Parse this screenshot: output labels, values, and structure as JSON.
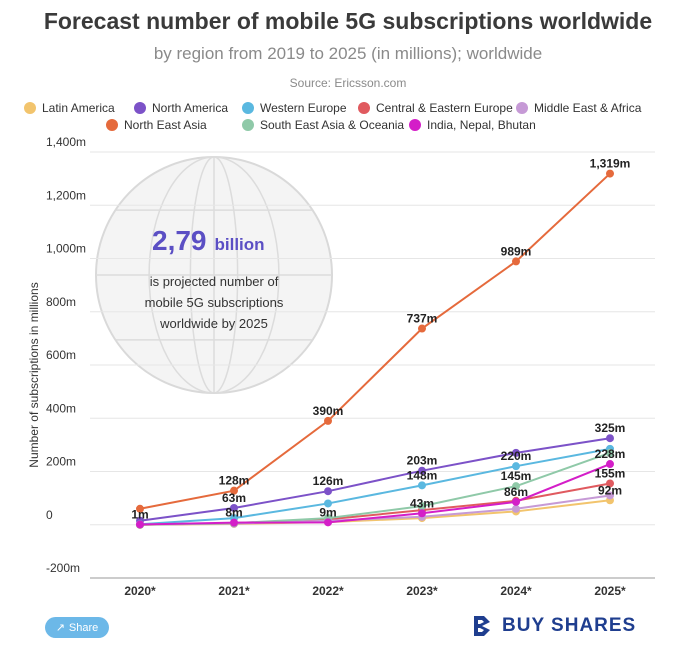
{
  "title": "Forecast number of mobile 5G subscriptions worldwide",
  "subtitle": "by region from 2019 to 2025 (in millions); worldwide",
  "source": "Source: Ericsson.com",
  "callout": {
    "value": "2,79",
    "unit": "billion",
    "lines": [
      "is projected number of",
      "mobile 5G subscriptions",
      "worldwide by 2025"
    ]
  },
  "share_label": "Share",
  "brand": "BUY SHARES",
  "chart_data": {
    "type": "line",
    "title": "Forecast number of mobile 5G subscriptions worldwide",
    "subtitle": "by region from 2019 to 2025 (in millions); worldwide",
    "ylabel": "Number of subscriptions in millions",
    "xlabel": "",
    "categories": [
      "2020*",
      "2021*",
      "2022*",
      "2023*",
      "2024*",
      "2025*"
    ],
    "ylim": [
      -200,
      1400
    ],
    "yticks": [
      -200,
      0,
      200,
      400,
      600,
      800,
      1000,
      1200,
      1400
    ],
    "ytick_labels": [
      "-200m",
      "0",
      "200m",
      "400m",
      "600m",
      "800m",
      "1,000m",
      "1,200m",
      "1,400m"
    ],
    "grid": true,
    "legend_position": "top",
    "series": [
      {
        "name": "Latin America",
        "color": "#f2c46d",
        "values": [
          0,
          3,
          10,
          25,
          50,
          92
        ]
      },
      {
        "name": "North America",
        "color": "#7c52c8",
        "values": [
          15,
          63,
          126,
          203,
          270,
          325
        ]
      },
      {
        "name": "Western Europe",
        "color": "#5ab8e0",
        "values": [
          2,
          25,
          80,
          148,
          220,
          285
        ]
      },
      {
        "name": "Central & Eastern Europe",
        "color": "#e05a5f",
        "values": [
          0,
          5,
          20,
          55,
          90,
          155
        ]
      },
      {
        "name": "Middle East & Africa",
        "color": "#c69ad6",
        "values": [
          1,
          4,
          15,
          30,
          60,
          110
        ]
      },
      {
        "name": "North East Asia",
        "color": "#e56a3c",
        "values": [
          60,
          128,
          390,
          737,
          989,
          1319
        ]
      },
      {
        "name": "South East Asia & Oceania",
        "color": "#8fc9a8",
        "values": [
          0,
          6,
          25,
          70,
          145,
          270
        ]
      },
      {
        "name": "India, Nepal, Bhutan",
        "color": "#d41ec8",
        "values": [
          1,
          8,
          9,
          43,
          86,
          228
        ]
      }
    ],
    "data_labels": [
      {
        "text": "1m",
        "x": "2020*",
        "y": 1
      },
      {
        "text": "128m",
        "x": "2021*",
        "y": 128
      },
      {
        "text": "63m",
        "x": "2021*",
        "y": 63
      },
      {
        "text": "8m",
        "x": "2021*",
        "y": 8
      },
      {
        "text": "390m",
        "x": "2022*",
        "y": 390
      },
      {
        "text": "126m",
        "x": "2022*",
        "y": 126
      },
      {
        "text": "9m",
        "x": "2022*",
        "y": 9
      },
      {
        "text": "737m",
        "x": "2023*",
        "y": 737
      },
      {
        "text": "203m",
        "x": "2023*",
        "y": 203
      },
      {
        "text": "148m",
        "x": "2023*",
        "y": 148
      },
      {
        "text": "43m",
        "x": "2023*",
        "y": 43
      },
      {
        "text": "989m",
        "x": "2024*",
        "y": 989
      },
      {
        "text": "220m",
        "x": "2024*",
        "y": 220
      },
      {
        "text": "145m",
        "x": "2024*",
        "y": 145
      },
      {
        "text": "86m",
        "x": "2024*",
        "y": 86
      },
      {
        "text": "1,319m",
        "x": "2025*",
        "y": 1319
      },
      {
        "text": "325m",
        "x": "2025*",
        "y": 325
      },
      {
        "text": "228m",
        "x": "2025*",
        "y": 228
      },
      {
        "text": "155m",
        "x": "2025*",
        "y": 155
      },
      {
        "text": "92m",
        "x": "2025*",
        "y": 92
      }
    ]
  }
}
